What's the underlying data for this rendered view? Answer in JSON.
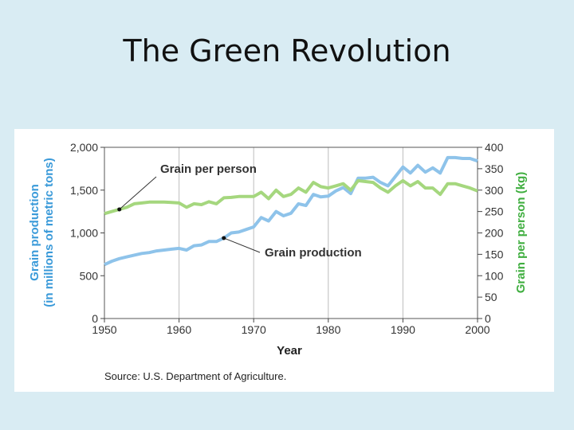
{
  "slide": {
    "title": "The Green Revolution"
  },
  "chart_data": {
    "type": "line",
    "x": [
      1950,
      1951,
      1952,
      1953,
      1954,
      1955,
      1956,
      1957,
      1958,
      1959,
      1960,
      1961,
      1962,
      1963,
      1964,
      1965,
      1966,
      1967,
      1968,
      1969,
      1970,
      1971,
      1972,
      1973,
      1974,
      1975,
      1976,
      1977,
      1978,
      1979,
      1980,
      1981,
      1982,
      1983,
      1984,
      1985,
      1986,
      1987,
      1988,
      1989,
      1990,
      1991,
      1992,
      1993,
      1994,
      1995,
      1996,
      1997,
      1998,
      1999,
      2000
    ],
    "series": [
      {
        "name": "Grain production",
        "axis": "left",
        "color": "#8ec3ea",
        "values": [
          630,
          670,
          700,
          720,
          740,
          760,
          770,
          790,
          800,
          810,
          820,
          800,
          850,
          860,
          900,
          900,
          940,
          1000,
          1010,
          1040,
          1070,
          1180,
          1140,
          1250,
          1200,
          1230,
          1340,
          1320,
          1450,
          1420,
          1430,
          1490,
          1530,
          1460,
          1640,
          1640,
          1650,
          1590,
          1550,
          1660,
          1770,
          1700,
          1790,
          1710,
          1760,
          1700,
          1880,
          1880,
          1870,
          1870,
          1840
        ]
      },
      {
        "name": "Grain per person",
        "axis": "right",
        "color": "#a5d77e",
        "values": [
          245,
          250,
          255,
          260,
          268,
          270,
          272,
          272,
          272,
          271,
          270,
          260,
          268,
          266,
          273,
          268,
          282,
          283,
          285,
          285,
          285,
          295,
          280,
          300,
          285,
          290,
          305,
          295,
          318,
          308,
          305,
          310,
          315,
          300,
          322,
          320,
          318,
          305,
          295,
          310,
          322,
          310,
          320,
          305,
          305,
          290,
          315,
          315,
          310,
          305,
          298
        ]
      }
    ],
    "title": "",
    "xlabel": "Year",
    "ylabel": "Grain production (in millions of metric tons)",
    "ylabel2": "Grain per person (kg)",
    "xlim": [
      1950,
      2000
    ],
    "ylim": [
      0,
      2000
    ],
    "y2lim": [
      0,
      400
    ],
    "xticks": [
      1950,
      1960,
      1970,
      1980,
      1990,
      2000
    ],
    "yticks": [
      0,
      500,
      1000,
      1500,
      2000
    ],
    "ytick_labels": [
      "0",
      "500",
      "1,000",
      "1,500",
      "2,000"
    ],
    "y2ticks": [
      0,
      50,
      100,
      150,
      200,
      250,
      300,
      350,
      400
    ],
    "grid": true,
    "annotations": [
      {
        "text": "Grain per person",
        "series": 1,
        "x": 1952
      },
      {
        "text": "Grain production",
        "series": 0,
        "x": 1966
      }
    ],
    "source": "Source: U.S. Department of Agriculture."
  }
}
